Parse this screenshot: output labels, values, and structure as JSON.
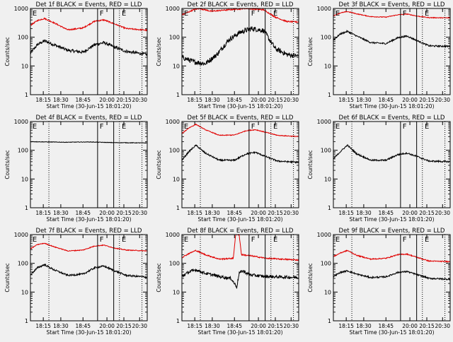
{
  "figure": {
    "background": "#f0f0f0",
    "axis_color": "#000000",
    "events_color": "#000000",
    "lld_color": "#e00000"
  },
  "chart_data": [
    {
      "type": "line",
      "title": "Det 1f BLACK = Events, RED = LLD",
      "xlabel": "Start Time (30-Jun-15 18:01:20)",
      "ylabel": "Counts/sec",
      "yscale": "log",
      "ylim": [
        1,
        1000
      ],
      "y_tick_labels": [
        "1",
        "10",
        "100",
        "1000"
      ],
      "x_tick_labels": [
        "18:15",
        "18:30",
        "18:45",
        "20:00",
        "20:15",
        "20:30"
      ],
      "phase_labels": [
        "E",
        "F",
        "E"
      ],
      "series": [
        {
          "name": "Events",
          "color": "#000000",
          "profile": [
            [
              0,
              28
            ],
            [
              0.06,
              55
            ],
            [
              0.12,
              75
            ],
            [
              0.2,
              55
            ],
            [
              0.32,
              35
            ],
            [
              0.45,
              30
            ],
            [
              0.55,
              55
            ],
            [
              0.63,
              65
            ],
            [
              0.72,
              45
            ],
            [
              0.82,
              32
            ],
            [
              1,
              25
            ]
          ],
          "noise": 0.12
        },
        {
          "name": "LLD",
          "color": "#e00000",
          "profile": [
            [
              0,
              260
            ],
            [
              0.06,
              380
            ],
            [
              0.12,
              450
            ],
            [
              0.2,
              320
            ],
            [
              0.32,
              180
            ],
            [
              0.45,
              210
            ],
            [
              0.55,
              360
            ],
            [
              0.63,
              400
            ],
            [
              0.72,
              290
            ],
            [
              0.82,
              200
            ],
            [
              1,
              175
            ]
          ],
          "noise": 0.05
        }
      ]
    },
    {
      "type": "line",
      "title": "Det 2f BLACK = Events, RED = LLD",
      "xlabel": "Start Time (30-Jun-15 18:01:20)",
      "ylabel": "Counts/sec",
      "yscale": "log",
      "ylim": [
        1,
        1000
      ],
      "y_tick_labels": [
        "1",
        "10",
        "100",
        "1000"
      ],
      "x_tick_labels": [
        "18:15",
        "18:30",
        "18:45",
        "20:00",
        "20:15",
        "20:30"
      ],
      "phase_labels": [
        "E",
        "F",
        "E"
      ],
      "series": [
        {
          "name": "Events",
          "color": "#000000",
          "profile": [
            [
              0,
              20
            ],
            [
              0.1,
              14
            ],
            [
              0.2,
              12
            ],
            [
              0.3,
              25
            ],
            [
              0.4,
              80
            ],
            [
              0.5,
              150
            ],
            [
              0.6,
              200
            ],
            [
              0.7,
              170
            ],
            [
              0.8,
              40
            ],
            [
              0.9,
              25
            ],
            [
              1,
              22
            ]
          ],
          "noise": 0.2
        },
        {
          "name": "LLD",
          "color": "#e00000",
          "profile": [
            [
              0,
              600
            ],
            [
              0.1,
              900
            ],
            [
              0.15,
              1000
            ],
            [
              0.25,
              800
            ],
            [
              0.4,
              900
            ],
            [
              0.55,
              1000
            ],
            [
              0.7,
              900
            ],
            [
              0.8,
              500
            ],
            [
              0.9,
              350
            ],
            [
              1,
              340
            ]
          ],
          "noise": 0.05
        }
      ]
    },
    {
      "type": "line",
      "title": "Det 3f BLACK = Events, RED = LLD",
      "xlabel": "Start Time (30-Jun-15 18:01:20)",
      "ylabel": "Counts/sec",
      "yscale": "log",
      "ylim": [
        1,
        1000
      ],
      "y_tick_labels": [
        "1",
        "10",
        "100",
        "1000"
      ],
      "x_tick_labels": [
        "18:15",
        "18:30",
        "18:45",
        "20:00",
        "20:15",
        "20:30"
      ],
      "phase_labels": [
        "E",
        "F",
        "E"
      ],
      "series": [
        {
          "name": "Events",
          "color": "#000000",
          "profile": [
            [
              0,
              80
            ],
            [
              0.06,
              130
            ],
            [
              0.12,
              160
            ],
            [
              0.2,
              110
            ],
            [
              0.32,
              65
            ],
            [
              0.45,
              60
            ],
            [
              0.55,
              95
            ],
            [
              0.63,
              110
            ],
            [
              0.72,
              75
            ],
            [
              0.82,
              50
            ],
            [
              1,
              48
            ]
          ],
          "noise": 0.06
        },
        {
          "name": "LLD",
          "color": "#e00000",
          "profile": [
            [
              0,
              560
            ],
            [
              0.06,
              700
            ],
            [
              0.12,
              780
            ],
            [
              0.2,
              650
            ],
            [
              0.32,
              520
            ],
            [
              0.45,
              500
            ],
            [
              0.55,
              600
            ],
            [
              0.63,
              640
            ],
            [
              0.72,
              540
            ],
            [
              0.82,
              480
            ],
            [
              1,
              470
            ]
          ],
          "noise": 0.03
        }
      ]
    },
    {
      "type": "line",
      "title": "Det 4f BLACK = Events, RED = LLD",
      "xlabel": "Start Time (30-Jun-15 18:01:20)",
      "ylabel": "Counts/sec",
      "yscale": "log",
      "ylim": [
        1,
        1000
      ],
      "y_tick_labels": [
        "1",
        "10",
        "100",
        "1000"
      ],
      "x_tick_labels": [
        "18:15",
        "18:30",
        "18:45",
        "20:00",
        "20:15",
        "20:30"
      ],
      "phase_labels": [
        "E",
        "F",
        "E"
      ],
      "series": [
        {
          "name": "Events",
          "color": "#000000",
          "profile": [
            [
              0,
              200
            ],
            [
              0.3,
              190
            ],
            [
              0.5,
              195
            ],
            [
              0.7,
              185
            ],
            [
              1,
              180
            ]
          ],
          "noise": 0.02
        },
        {
          "name": "LLD",
          "color": "#e00000",
          "profile": [
            [
              0,
              1000
            ],
            [
              0.3,
              1000
            ],
            [
              0.6,
              1000
            ],
            [
              1,
              1000
            ]
          ],
          "noise": 0.0
        }
      ]
    },
    {
      "type": "line",
      "title": "Det 5f BLACK = Events, RED = LLD",
      "xlabel": "Start Time (30-Jun-15 18:01:20)",
      "ylabel": "Counts/sec",
      "yscale": "log",
      "ylim": [
        1,
        1000
      ],
      "y_tick_labels": [
        "1",
        "10",
        "100",
        "1000"
      ],
      "x_tick_labels": [
        "18:15",
        "18:30",
        "18:45",
        "20:00",
        "20:15",
        "20:30"
      ],
      "phase_labels": [
        "E",
        "F",
        "E"
      ],
      "series": [
        {
          "name": "Events",
          "color": "#000000",
          "profile": [
            [
              0,
              45
            ],
            [
              0.06,
              90
            ],
            [
              0.12,
              150
            ],
            [
              0.2,
              80
            ],
            [
              0.32,
              45
            ],
            [
              0.45,
              45
            ],
            [
              0.55,
              75
            ],
            [
              0.63,
              85
            ],
            [
              0.72,
              60
            ],
            [
              0.82,
              42
            ],
            [
              1,
              38
            ]
          ],
          "noise": 0.06
        },
        {
          "name": "LLD",
          "color": "#e00000",
          "profile": [
            [
              0,
              380
            ],
            [
              0.06,
              600
            ],
            [
              0.12,
              800
            ],
            [
              0.2,
              520
            ],
            [
              0.32,
              330
            ],
            [
              0.45,
              340
            ],
            [
              0.55,
              480
            ],
            [
              0.63,
              520
            ],
            [
              0.72,
              420
            ],
            [
              0.82,
              330
            ],
            [
              1,
              300
            ]
          ],
          "noise": 0.03
        }
      ]
    },
    {
      "type": "line",
      "title": "Det 6f BLACK = Events, RED = LLD",
      "xlabel": "Start Time (30-Jun-15 18:01:20)",
      "ylabel": "Counts/sec",
      "yscale": "log",
      "ylim": [
        1,
        1000
      ],
      "y_tick_labels": [
        "1",
        "10",
        "100",
        "1000"
      ],
      "x_tick_labels": [
        "18:15",
        "18:30",
        "18:45",
        "20:00",
        "20:15",
        "20:30"
      ],
      "phase_labels": [
        "E",
        "F",
        "E"
      ],
      "series": [
        {
          "name": "Events",
          "color": "#000000",
          "profile": [
            [
              0,
              50
            ],
            [
              0.06,
              90
            ],
            [
              0.12,
              150
            ],
            [
              0.2,
              75
            ],
            [
              0.32,
              45
            ],
            [
              0.45,
              45
            ],
            [
              0.55,
              70
            ],
            [
              0.63,
              80
            ],
            [
              0.72,
              60
            ],
            [
              0.82,
              42
            ],
            [
              1,
              40
            ]
          ],
          "noise": 0.06
        },
        {
          "name": "LLD",
          "color": "#e00000",
          "profile": [
            [
              0,
              1000
            ],
            [
              0.5,
              1000
            ],
            [
              1,
              1000
            ]
          ],
          "noise": 0.0
        }
      ]
    },
    {
      "type": "line",
      "title": "Det 7f BLACK = Events, RED = LLD",
      "xlabel": "Start Time (30-Jun-15 18:01:20)",
      "ylabel": "Counts/sec",
      "yscale": "log",
      "ylim": [
        1,
        1000
      ],
      "y_tick_labels": [
        "1",
        "10",
        "100",
        "1000"
      ],
      "x_tick_labels": [
        "18:15",
        "18:30",
        "18:45",
        "20:00",
        "20:15",
        "20:30"
      ],
      "phase_labels": [
        "E",
        "F",
        "E"
      ],
      "series": [
        {
          "name": "Events",
          "color": "#000000",
          "profile": [
            [
              0,
              40
            ],
            [
              0.06,
              70
            ],
            [
              0.12,
              90
            ],
            [
              0.2,
              60
            ],
            [
              0.32,
              38
            ],
            [
              0.45,
              42
            ],
            [
              0.55,
              70
            ],
            [
              0.63,
              80
            ],
            [
              0.72,
              55
            ],
            [
              0.82,
              38
            ],
            [
              1,
              33
            ]
          ],
          "noise": 0.07
        },
        {
          "name": "LLD",
          "color": "#e00000",
          "profile": [
            [
              0,
              320
            ],
            [
              0.06,
              450
            ],
            [
              0.12,
              500
            ],
            [
              0.2,
              380
            ],
            [
              0.32,
              270
            ],
            [
              0.45,
              290
            ],
            [
              0.55,
              400
            ],
            [
              0.63,
              430
            ],
            [
              0.72,
              340
            ],
            [
              0.82,
              290
            ],
            [
              1,
              270
            ]
          ],
          "noise": 0.03
        }
      ]
    },
    {
      "type": "line",
      "title": "Det 8f BLACK = Events, RED = LLD",
      "xlabel": "Start Time (30-Jun-15 18:01:20)",
      "ylabel": "Counts/sec",
      "yscale": "log",
      "ylim": [
        1,
        1000
      ],
      "y_tick_labels": [
        "1",
        "10",
        "100",
        "1000"
      ],
      "x_tick_labels": [
        "18:15",
        "18:30",
        "18:45",
        "20:00",
        "20:15",
        "20:30"
      ],
      "phase_labels": [
        "E",
        "F",
        "E"
      ],
      "series": [
        {
          "name": "Events",
          "color": "#000000",
          "profile": [
            [
              0,
              35
            ],
            [
              0.06,
              50
            ],
            [
              0.12,
              60
            ],
            [
              0.2,
              45
            ],
            [
              0.32,
              35
            ],
            [
              0.42,
              30
            ],
            [
              0.47,
              15
            ],
            [
              0.49,
              45
            ],
            [
              0.52,
              55
            ],
            [
              0.58,
              40
            ],
            [
              0.7,
              35
            ],
            [
              1,
              32
            ]
          ],
          "noise": 0.12
        },
        {
          "name": "LLD",
          "color": "#e00000",
          "profile": [
            [
              0,
              160
            ],
            [
              0.06,
              220
            ],
            [
              0.12,
              280
            ],
            [
              0.2,
              200
            ],
            [
              0.32,
              140
            ],
            [
              0.44,
              150
            ],
            [
              0.46,
              1000
            ],
            [
              0.49,
              1000
            ],
            [
              0.51,
              200
            ],
            [
              0.6,
              180
            ],
            [
              0.72,
              150
            ],
            [
              1,
              130
            ]
          ],
          "noise": 0.05
        }
      ]
    },
    {
      "type": "line",
      "title": "Det 9f BLACK = Events, RED = LLD",
      "xlabel": "Start Time (30-Jun-15 18:01:20)",
      "ylabel": "Counts/sec",
      "yscale": "log",
      "ylim": [
        1,
        1000
      ],
      "y_tick_labels": [
        "1",
        "10",
        "100",
        "1000"
      ],
      "x_tick_labels": [
        "18:15",
        "18:30",
        "18:45",
        "20:00",
        "20:15",
        "20:30"
      ],
      "phase_labels": [
        "E",
        "F",
        "E"
      ],
      "series": [
        {
          "name": "Events",
          "color": "#000000",
          "profile": [
            [
              0,
              35
            ],
            [
              0.06,
              48
            ],
            [
              0.12,
              55
            ],
            [
              0.2,
              42
            ],
            [
              0.32,
              32
            ],
            [
              0.45,
              34
            ],
            [
              0.55,
              48
            ],
            [
              0.63,
              52
            ],
            [
              0.72,
              40
            ],
            [
              0.82,
              30
            ],
            [
              1,
              28
            ]
          ],
          "noise": 0.06
        },
        {
          "name": "LLD",
          "color": "#e00000",
          "profile": [
            [
              0,
              170
            ],
            [
              0.06,
              230
            ],
            [
              0.12,
              280
            ],
            [
              0.2,
              190
            ],
            [
              0.32,
              140
            ],
            [
              0.45,
              150
            ],
            [
              0.55,
              200
            ],
            [
              0.63,
              210
            ],
            [
              0.72,
              160
            ],
            [
              0.82,
              120
            ],
            [
              1,
              115
            ]
          ],
          "noise": 0.04
        }
      ]
    }
  ]
}
